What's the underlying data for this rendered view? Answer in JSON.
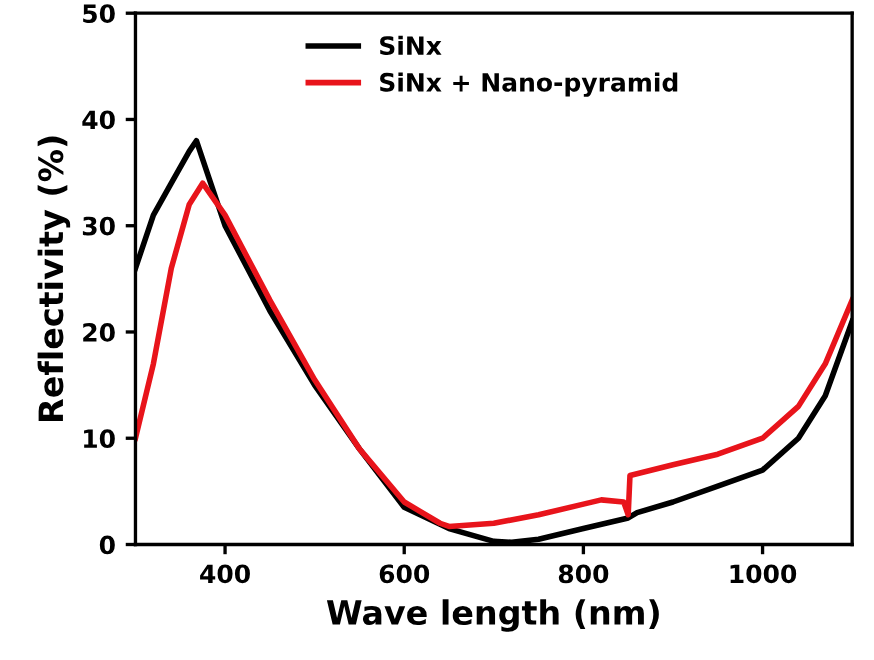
{
  "chart_data": {
    "type": "line",
    "xlabel": "Wave length (nm)",
    "ylabel": "Reflectivity (%)",
    "xlim": [
      300,
      1100
    ],
    "ylim": [
      0,
      50
    ],
    "xticks": [
      400,
      600,
      800,
      1000
    ],
    "yticks": [
      0,
      10,
      20,
      30,
      40,
      50
    ],
    "grid": false,
    "legend": "top",
    "marker": "none",
    "line_style": "solid",
    "series": [
      {
        "name": "SiNx",
        "color": "#000000",
        "x": [
          300,
          320,
          340,
          360,
          368,
          380,
          400,
          450,
          500,
          550,
          600,
          650,
          700,
          720,
          750,
          800,
          850,
          860,
          900,
          950,
          1000,
          1040,
          1070,
          1100
        ],
        "values": [
          26,
          31,
          34,
          37,
          38,
          35,
          30,
          22,
          15,
          9,
          3.5,
          1.5,
          0.3,
          0.2,
          0.5,
          1.5,
          2.5,
          3,
          4,
          5.5,
          7,
          10,
          14,
          21
        ]
      },
      {
        "name": "SiNx + Nano-pyramid",
        "color": "#e8141b",
        "x": [
          300,
          320,
          340,
          360,
          375,
          400,
          450,
          500,
          550,
          600,
          640,
          650,
          700,
          750,
          800,
          820,
          845,
          850,
          852,
          900,
          950,
          1000,
          1040,
          1070,
          1100
        ],
        "values": [
          10,
          17,
          26,
          32,
          34,
          31,
          23,
          15.5,
          9,
          4,
          2,
          1.7,
          2,
          2.8,
          3.8,
          4.2,
          4,
          2.8,
          6.5,
          7.5,
          8.5,
          10,
          13,
          17,
          23
        ]
      }
    ]
  }
}
